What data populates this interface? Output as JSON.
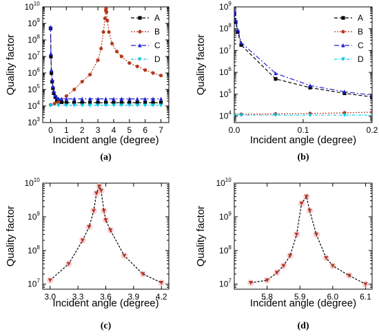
{
  "colors": {
    "A": "#000000",
    "B": "#b5381e",
    "C": "#1f1fd6",
    "D": "#00c8e6",
    "fit": "#000000",
    "fitMarker": "#b5381e"
  },
  "chart_data": [
    {
      "id": "a",
      "type": "line",
      "panel_label": "(a)",
      "xlabel": "Incident angle (degree)",
      "ylabel": "Quality factor",
      "yscale": "log",
      "xlim": [
        -0.5,
        7.5
      ],
      "ylim_exp": [
        3,
        10
      ],
      "xticks": [
        {
          "v": 0,
          "t": "0"
        },
        {
          "v": 1,
          "t": "1"
        },
        {
          "v": 2,
          "t": "2"
        },
        {
          "v": 3,
          "t": "3"
        },
        {
          "v": 4,
          "t": "4"
        },
        {
          "v": 5,
          "t": "5"
        },
        {
          "v": 6,
          "t": "6"
        },
        {
          "v": 7,
          "t": "7"
        }
      ],
      "yticks": [
        3,
        4,
        5,
        6,
        7,
        8,
        9,
        10
      ],
      "legend": "top-right",
      "series": [
        {
          "name": "A",
          "x": [
            0,
            0.02,
            0.05,
            0.1,
            0.15,
            0.2,
            0.3,
            0.4,
            0.5,
            0.7,
            1,
            1.5,
            2,
            2.5,
            3,
            3.5,
            4,
            4.5,
            5,
            5.5,
            6,
            6.5,
            7
          ],
          "y": [
            500000000,
            10000000,
            1000000,
            300000,
            120000,
            60000,
            35000,
            22000,
            19000,
            17000,
            16000,
            16000,
            16000,
            16000,
            16000,
            16000,
            16000,
            16000,
            16000,
            16000,
            16000,
            16000,
            16000
          ]
        },
        {
          "name": "B",
          "x": [
            0,
            0.25,
            0.5,
            1,
            1.5,
            2,
            2.5,
            3,
            3.2,
            3.35,
            3.45,
            3.5,
            3.52,
            3.55,
            3.6,
            3.7,
            3.9,
            4.2,
            4.5,
            5,
            5.5,
            6,
            6.5,
            7
          ],
          "y": [
            12000,
            14000,
            18000,
            40000,
            100000,
            300000,
            800000,
            6000000,
            30000000,
            300000000,
            2000000000,
            6000000000,
            8000000000,
            5000000000,
            1500000000,
            300000000,
            60000000,
            20000000,
            10000000,
            4000000,
            2500000,
            1500000,
            1000000,
            700000
          ]
        },
        {
          "name": "C",
          "x": [
            0,
            0.02,
            0.05,
            0.1,
            0.15,
            0.2,
            0.3,
            0.4,
            0.5,
            0.7,
            1,
            1.5,
            2,
            2.5,
            3,
            3.5,
            4,
            4.5,
            5,
            5.5,
            6,
            6.5,
            7
          ],
          "y": [
            600000000,
            15000000,
            1500000,
            400000,
            150000,
            80000,
            45000,
            32000,
            28000,
            27000,
            27000,
            27000,
            27000,
            27000,
            27000,
            27000,
            27000,
            27000,
            27000,
            27000,
            27000,
            27000,
            27000
          ]
        },
        {
          "name": "D",
          "x": [
            0,
            0.5,
            1,
            1.5,
            2,
            2.5,
            3,
            3.5,
            4,
            4.5,
            5,
            5.5,
            6,
            6.5,
            7
          ],
          "y": [
            11000,
            11000,
            11000,
            11000,
            11000,
            11000,
            11000,
            11000,
            11000,
            11000,
            11000,
            11000,
            11000,
            11000,
            11000
          ]
        }
      ]
    },
    {
      "id": "b",
      "type": "line",
      "panel_label": "(b)",
      "xlabel": "Incident angle (degree)",
      "ylabel": "Quality factor",
      "yscale": "log",
      "xlim": [
        0,
        0.2
      ],
      "ylim_exp": [
        3.7,
        9
      ],
      "xticks": [
        {
          "v": 0,
          "t": "0.0"
        },
        {
          "v": 0.1,
          "t": "0.1"
        },
        {
          "v": 0.2,
          "t": "0.2"
        }
      ],
      "yticks": [
        4,
        5,
        6,
        7,
        8,
        9
      ],
      "legend": "top-right",
      "series": [
        {
          "name": "A",
          "x": [
            0,
            0.002,
            0.005,
            0.01,
            0.06,
            0.11,
            0.16,
            0.2
          ],
          "y": [
            500000000,
            200000000,
            70000000,
            18000000,
            500000,
            200000,
            110000,
            75000
          ]
        },
        {
          "name": "B",
          "x": [
            0,
            0.01,
            0.06,
            0.11,
            0.16,
            0.2
          ],
          "y": [
            12000,
            12000,
            12500,
            13000,
            14000,
            15000
          ]
        },
        {
          "name": "C",
          "x": [
            0,
            0.002,
            0.005,
            0.01,
            0.06,
            0.11,
            0.16,
            0.2
          ],
          "y": [
            600000000,
            250000000,
            90000000,
            23000000,
            900000,
            250000,
            130000,
            90000
          ]
        },
        {
          "name": "D",
          "x": [
            0,
            0.01,
            0.06,
            0.11,
            0.16,
            0.2
          ],
          "y": [
            11000,
            11000,
            11000,
            11000,
            11000,
            11000
          ]
        }
      ]
    },
    {
      "id": "c",
      "type": "line",
      "panel_label": "(c)",
      "xlabel": "Incident angle (degree)",
      "ylabel": "Quality factor",
      "yscale": "log",
      "xlim": [
        2.92,
        4.28
      ],
      "ylim_exp": [
        6.85,
        10
      ],
      "xticks": [
        {
          "v": 3.0,
          "t": "3.0"
        },
        {
          "v": 3.3,
          "t": "3.3"
        },
        {
          "v": 3.6,
          "t": "3.6"
        },
        {
          "v": 3.9,
          "t": "3.9"
        },
        {
          "v": 4.2,
          "t": "4.2"
        }
      ],
      "yticks": [
        7,
        8,
        9,
        10
      ],
      "series": [
        {
          "x": [
            3.0,
            3.2,
            3.35,
            3.42,
            3.47,
            3.5,
            3.53,
            3.55,
            3.58,
            3.6,
            3.65,
            3.8,
            4.0,
            4.2
          ],
          "y": [
            13000000,
            40000000,
            200000000,
            500000000,
            1500000000,
            5000000000,
            8000000000,
            6000000000,
            1500000000,
            800000000,
            400000000,
            70000000,
            20000000,
            11000000
          ]
        }
      ]
    },
    {
      "id": "d",
      "type": "line",
      "panel_label": "(d)",
      "xlabel": "Incident angle (degree)",
      "ylabel": "Quality factor",
      "yscale": "log",
      "xlim": [
        5.7,
        6.12
      ],
      "ylim_exp": [
        6.85,
        10
      ],
      "xticks": [
        {
          "v": 5.8,
          "t": "5.8"
        },
        {
          "v": 5.9,
          "t": "5.9"
        },
        {
          "v": 6.0,
          "t": "6.0"
        },
        {
          "v": 6.1,
          "t": "6.1"
        }
      ],
      "yticks": [
        7,
        8,
        9,
        10
      ],
      "series": [
        {
          "x": [
            5.75,
            5.8,
            5.83,
            5.85,
            5.87,
            5.89,
            5.905,
            5.92,
            5.93,
            5.95,
            5.98,
            6.0,
            6.05,
            6.1
          ],
          "y": [
            11000000,
            13000000,
            22000000,
            35000000,
            70000000,
            300000000,
            2500000000,
            4000000000,
            1500000000,
            300000000,
            60000000,
            35000000,
            18000000,
            10000000
          ]
        }
      ]
    }
  ]
}
